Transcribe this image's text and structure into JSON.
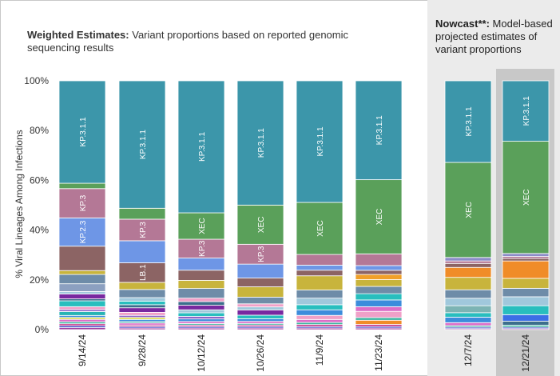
{
  "title": {
    "bold": "Weighted Estimates:",
    "rest": " Variant proportions based on reported genomic sequencing results"
  },
  "nowcast": {
    "bold": "Nowcast**:",
    "rest": " Model-based projected estimates of variant proportions"
  },
  "chart_data": {
    "type": "bar",
    "stacked": true,
    "ylabel": "% Viral Lineages Among Infections",
    "ylim": [
      0,
      100
    ],
    "yticks": [
      "0%",
      "20%",
      "40%",
      "60%",
      "80%",
      "100%"
    ],
    "categories": [
      "9/14/24",
      "9/28/24",
      "10/12/24",
      "10/26/24",
      "11/9/24",
      "11/23/24",
      "12/7/24",
      "12/21/24"
    ],
    "nowcast_categories": [
      "12/7/24",
      "12/21/24"
    ],
    "highlighted_category": "12/21/24",
    "bars": [
      {
        "date": "9/14/24",
        "segments": [
          {
            "v": 0.8,
            "c": "#a03ca0"
          },
          {
            "v": 0.8,
            "c": "#5050c8"
          },
          {
            "v": 0.8,
            "c": "#c83c8c"
          },
          {
            "v": 0.8,
            "c": "#3cb4a0"
          },
          {
            "v": 1.0,
            "c": "#dc6ec8"
          },
          {
            "v": 0.8,
            "c": "#dcdc50"
          },
          {
            "v": 0.8,
            "c": "#3c8cdc"
          },
          {
            "v": 1.6,
            "c": "#28b4b4"
          },
          {
            "v": 0.8,
            "c": "#8c64c8"
          },
          {
            "v": 1.2,
            "c": "#f0a0c8"
          },
          {
            "v": 2.4,
            "c": "#28bebe"
          },
          {
            "v": 0.8,
            "c": "#3c6e8c"
          },
          {
            "v": 2.0,
            "c": "#7828a0"
          },
          {
            "v": 1.0,
            "c": "#a0c8dc"
          },
          {
            "v": 3.2,
            "c": "#8ca0c0"
          },
          {
            "v": 3.8,
            "c": "#6e8ca8"
          },
          {
            "v": 1.6,
            "c": "#c8b43c"
          },
          {
            "v": 10.0,
            "c": "#8c6464",
            "label": ""
          },
          {
            "v": 11.6,
            "c": "#6e96e6",
            "label": "KP.2.3"
          },
          {
            "v": 12.0,
            "c": "#b47896",
            "label": "KP.3"
          },
          {
            "v": 2.2,
            "c": "#5aa05a"
          },
          {
            "v": 42.0,
            "c": "#3c96aa",
            "label": "KP.3.1.1"
          }
        ]
      },
      {
        "date": "9/28/24",
        "segments": [
          {
            "v": 0.6,
            "c": "#a03ca0"
          },
          {
            "v": 0.6,
            "c": "#5050c8"
          },
          {
            "v": 0.6,
            "c": "#c83c8c"
          },
          {
            "v": 0.8,
            "c": "#dc6ec8"
          },
          {
            "v": 0.6,
            "c": "#3cb4a0"
          },
          {
            "v": 0.8,
            "c": "#3c8cdc"
          },
          {
            "v": 0.8,
            "c": "#dcdc50"
          },
          {
            "v": 0.8,
            "c": "#8c64c8"
          },
          {
            "v": 1.2,
            "c": "#f0a0c8"
          },
          {
            "v": 1.8,
            "c": "#7828a0"
          },
          {
            "v": 1.2,
            "c": "#3c6e8c"
          },
          {
            "v": 1.4,
            "c": "#28bebe"
          },
          {
            "v": 1.4,
            "c": "#a0c8dc"
          },
          {
            "v": 3.2,
            "c": "#6e8ca8"
          },
          {
            "v": 2.8,
            "c": "#c8b43c"
          },
          {
            "v": 7.7,
            "c": "#8c6464",
            "label": "LB.1"
          },
          {
            "v": 8.7,
            "c": "#6e96e6",
            "label": ""
          },
          {
            "v": 8.5,
            "c": "#b47896",
            "label": "KP.3"
          },
          {
            "v": 4.3,
            "c": "#5aa05a"
          },
          {
            "v": 50.2,
            "c": "#3c96aa",
            "label": "KP.3.1.1"
          }
        ]
      },
      {
        "date": "10/12/24",
        "segments": [
          {
            "v": 0.6,
            "c": "#a03ca0"
          },
          {
            "v": 0.6,
            "c": "#5050c8"
          },
          {
            "v": 0.6,
            "c": "#c83c8c"
          },
          {
            "v": 0.6,
            "c": "#3cb4a0"
          },
          {
            "v": 0.8,
            "c": "#dc6ec8"
          },
          {
            "v": 1.0,
            "c": "#3c8cdc"
          },
          {
            "v": 1.0,
            "c": "#8c64c8"
          },
          {
            "v": 1.4,
            "c": "#28bebe"
          },
          {
            "v": 1.2,
            "c": "#a0c8dc"
          },
          {
            "v": 1.8,
            "c": "#7828a0"
          },
          {
            "v": 1.4,
            "c": "#3c6e8c"
          },
          {
            "v": 1.4,
            "c": "#f0a0c8"
          },
          {
            "v": 3.8,
            "c": "#6e8ca8"
          },
          {
            "v": 3.2,
            "c": "#c8b43c"
          },
          {
            "v": 4.0,
            "c": "#8c6464"
          },
          {
            "v": 4.8,
            "c": "#6e96e6",
            "label": ""
          },
          {
            "v": 7.4,
            "c": "#b47896",
            "label": "KP.3"
          },
          {
            "v": 10.4,
            "c": "#5aa05a",
            "label": "XEC"
          },
          {
            "v": 52.0,
            "c": "#3c96aa",
            "label": "KP.3.1.1"
          }
        ]
      },
      {
        "date": "10/26/24",
        "segments": [
          {
            "v": 0.6,
            "c": "#a03ca0"
          },
          {
            "v": 0.6,
            "c": "#5050c8"
          },
          {
            "v": 0.6,
            "c": "#c83c8c"
          },
          {
            "v": 0.6,
            "c": "#3cb4a0"
          },
          {
            "v": 0.8,
            "c": "#dc6ec8"
          },
          {
            "v": 1.0,
            "c": "#3c8cdc"
          },
          {
            "v": 1.4,
            "c": "#28bebe"
          },
          {
            "v": 2.0,
            "c": "#7828a0"
          },
          {
            "v": 1.2,
            "c": "#a0c8dc"
          },
          {
            "v": 1.2,
            "c": "#f0a0c8"
          },
          {
            "v": 2.6,
            "c": "#6e8ca8"
          },
          {
            "v": 4.0,
            "c": "#c8b43c"
          },
          {
            "v": 3.4,
            "c": "#8c6464"
          },
          {
            "v": 5.4,
            "c": "#6e96e6"
          },
          {
            "v": 7.7,
            "c": "#b47896",
            "label": "KP.3"
          },
          {
            "v": 15.2,
            "c": "#5aa05a",
            "label": "XEC"
          },
          {
            "v": 48.2,
            "c": "#3c96aa",
            "label": "KP.3.1.1"
          }
        ]
      },
      {
        "date": "11/9/24",
        "segments": [
          {
            "v": 0.6,
            "c": "#a03ca0"
          },
          {
            "v": 0.6,
            "c": "#5050c8"
          },
          {
            "v": 0.8,
            "c": "#c83c8c"
          },
          {
            "v": 0.8,
            "c": "#3cb4a0"
          },
          {
            "v": 1.2,
            "c": "#dc6ec8"
          },
          {
            "v": 1.6,
            "c": "#f0a0c8"
          },
          {
            "v": 2.2,
            "c": "#3c8cdc"
          },
          {
            "v": 2.0,
            "c": "#28bebe"
          },
          {
            "v": 2.6,
            "c": "#a0c8dc"
          },
          {
            "v": 3.2,
            "c": "#6e8ca8"
          },
          {
            "v": 5.6,
            "c": "#c8b43c"
          },
          {
            "v": 2.2,
            "c": "#8c6464"
          },
          {
            "v": 2.0,
            "c": "#6e96e6"
          },
          {
            "v": 4.2,
            "c": "#b47896"
          },
          {
            "v": 20.5,
            "c": "#5aa05a",
            "label": "XEC"
          },
          {
            "v": 47.9,
            "c": "#3c96aa",
            "label": "KP.3.1.1"
          }
        ]
      },
      {
        "date": "11/23/24",
        "segments": [
          {
            "v": 0.6,
            "c": "#a03ca0"
          },
          {
            "v": 0.6,
            "c": "#5050c8"
          },
          {
            "v": 0.8,
            "c": "#c83c8c"
          },
          {
            "v": 1.6,
            "c": "#f08c28"
          },
          {
            "v": 1.0,
            "c": "#3cb4a0"
          },
          {
            "v": 2.4,
            "c": "#f0a0c8"
          },
          {
            "v": 1.8,
            "c": "#dc6ec8"
          },
          {
            "v": 2.6,
            "c": "#3c8cdc"
          },
          {
            "v": 2.4,
            "c": "#28bebe"
          },
          {
            "v": 2.8,
            "c": "#6e8ca8"
          },
          {
            "v": 2.6,
            "c": "#c8b43c"
          },
          {
            "v": 2.0,
            "c": "#f0a028"
          },
          {
            "v": 1.6,
            "c": "#8c6464"
          },
          {
            "v": 1.8,
            "c": "#6e96e6"
          },
          {
            "v": 4.5,
            "c": "#b47896"
          },
          {
            "v": 28.5,
            "c": "#5aa05a",
            "label": "XEC"
          },
          {
            "v": 38.0,
            "c": "#3c96aa",
            "label": "KP.3.1.1"
          }
        ]
      },
      {
        "date": "12/7/24",
        "segments": [
          {
            "v": 0.4,
            "c": "#a03ca0"
          },
          {
            "v": 0.6,
            "c": "#5050c8"
          },
          {
            "v": 0.6,
            "c": "#3cb4a0"
          },
          {
            "v": 1.2,
            "c": "#dc6ec8"
          },
          {
            "v": 2.2,
            "c": "#3c8cdc"
          },
          {
            "v": 1.8,
            "c": "#28bebe"
          },
          {
            "v": 2.8,
            "c": "#7cb4b4"
          },
          {
            "v": 3.0,
            "c": "#a0c8dc"
          },
          {
            "v": 3.4,
            "c": "#6e8ca8"
          },
          {
            "v": 5.0,
            "c": "#c8b43c"
          },
          {
            "v": 4.0,
            "c": "#f08c28"
          },
          {
            "v": 1.6,
            "c": "#8c6464"
          },
          {
            "v": 1.0,
            "c": "#b47896"
          },
          {
            "v": 1.4,
            "c": "#8c8cc8"
          },
          {
            "v": 38.2,
            "c": "#5aa05a",
            "label": "XEC"
          },
          {
            "v": 32.8,
            "c": "#3c96aa",
            "label": "KP.3.1.1"
          }
        ]
      },
      {
        "date": "12/21/24",
        "segments": [
          {
            "v": 0.4,
            "c": "#a03ca0"
          },
          {
            "v": 0.6,
            "c": "#5050c8"
          },
          {
            "v": 0.8,
            "c": "#3cb4a0"
          },
          {
            "v": 1.6,
            "c": "#3c6e8c"
          },
          {
            "v": 2.6,
            "c": "#3c6ee6"
          },
          {
            "v": 3.6,
            "c": "#28bebe"
          },
          {
            "v": 3.6,
            "c": "#a0c8dc"
          },
          {
            "v": 3.4,
            "c": "#6e8ca8"
          },
          {
            "v": 4.0,
            "c": "#c8b43c"
          },
          {
            "v": 7.0,
            "c": "#f08c28"
          },
          {
            "v": 1.0,
            "c": "#8c6464"
          },
          {
            "v": 0.8,
            "c": "#b47896"
          },
          {
            "v": 1.2,
            "c": "#8c8cc8"
          },
          {
            "v": 45.1,
            "c": "#5aa05a",
            "label": "XEC"
          },
          {
            "v": 24.3,
            "c": "#3c96aa",
            "label": "KP.3.1.1"
          }
        ]
      }
    ]
  }
}
